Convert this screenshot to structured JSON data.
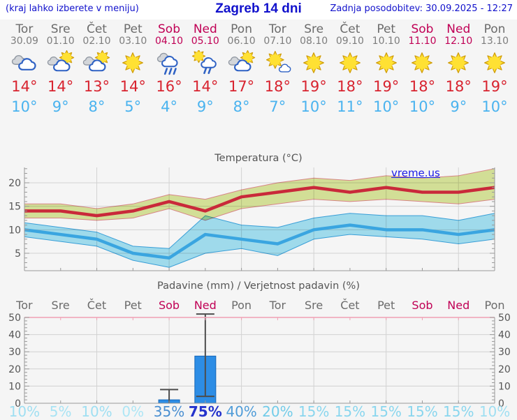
{
  "header": {
    "location_hint": "(kraj lahko izberete v meniju)",
    "title": "Zagreb 14 dni",
    "updated": "Zadnja posodobitev: 30.09.2025 - 12:27"
  },
  "colors": {
    "header_text": "#1111cc",
    "weekday": "#6b6b6b",
    "weekend": "#c00055",
    "date": "#7d7d7d",
    "temp_max": "#d8232f",
    "temp_min": "#4ab3ef",
    "axis": "#999999",
    "grid": "#d2d2d2",
    "tick_label": "#555555",
    "band_max_fill": "#dbe79c",
    "band_max_edge": "#e08a8a",
    "band_min_fill": "#a6e3f5",
    "band_min_edge": "#3aa5e0",
    "line_max": "#c9293a",
    "line_min": "#3aa5e0",
    "bar_fill": "#2d8de5",
    "bar_edge": "#1767b8",
    "whisker": "#4d4d4d",
    "precip_top_border": "#f0a0b4",
    "watermark": "#1a1ae6"
  },
  "forecast": {
    "days": [
      {
        "name": "Tor",
        "date": "30.09",
        "weekend": false,
        "icon": "cloudy",
        "temp_max": "14°",
        "temp_min": "10°"
      },
      {
        "name": "Sre",
        "date": "01.10",
        "weekend": false,
        "icon": "partly-cloudy",
        "temp_max": "14°",
        "temp_min": "9°"
      },
      {
        "name": "Čet",
        "date": "02.10",
        "weekend": false,
        "icon": "partly-cloudy",
        "temp_max": "13°",
        "temp_min": "8°"
      },
      {
        "name": "Pet",
        "date": "03.10",
        "weekend": false,
        "icon": "sunny",
        "temp_max": "14°",
        "temp_min": "5°"
      },
      {
        "name": "Sob",
        "date": "04.10",
        "weekend": true,
        "icon": "rain",
        "temp_max": "16°",
        "temp_min": "4°"
      },
      {
        "name": "Ned",
        "date": "05.10",
        "weekend": true,
        "icon": "sun-rain",
        "temp_max": "14°",
        "temp_min": "9°"
      },
      {
        "name": "Pon",
        "date": "06.10",
        "weekend": false,
        "icon": "partly-cloudy",
        "temp_max": "17°",
        "temp_min": "8°"
      },
      {
        "name": "Tor",
        "date": "07.10",
        "weekend": false,
        "icon": "mostly-sunny",
        "temp_max": "18°",
        "temp_min": "7°"
      },
      {
        "name": "Sre",
        "date": "08.10",
        "weekend": false,
        "icon": "sunny",
        "temp_max": "19°",
        "temp_min": "10°"
      },
      {
        "name": "Čet",
        "date": "09.10",
        "weekend": false,
        "icon": "sunny",
        "temp_max": "18°",
        "temp_min": "11°"
      },
      {
        "name": "Pet",
        "date": "10.10",
        "weekend": false,
        "icon": "sunny",
        "temp_max": "19°",
        "temp_min": "10°"
      },
      {
        "name": "Sob",
        "date": "11.10",
        "weekend": true,
        "icon": "sunny",
        "temp_max": "18°",
        "temp_min": "10°"
      },
      {
        "name": "Ned",
        "date": "12.10",
        "weekend": true,
        "icon": "sunny",
        "temp_max": "18°",
        "temp_min": "9°"
      },
      {
        "name": "Pon",
        "date": "13.10",
        "weekend": false,
        "icon": "sunny",
        "temp_max": "19°",
        "temp_min": "10°"
      }
    ]
  },
  "chart_data": [
    {
      "type": "line",
      "title": "Temperatura (°C)",
      "categories": [
        "30.09",
        "01.10",
        "02.10",
        "03.10",
        "04.10",
        "05.10",
        "06.10",
        "07.10",
        "08.10",
        "09.10",
        "10.10",
        "11.10",
        "12.10",
        "13.10"
      ],
      "ylim": [
        1.3,
        23.3
      ],
      "yticks": [
        5,
        10,
        15,
        20
      ],
      "grid": "on",
      "watermark": "vreme.us",
      "series": [
        {
          "name": "temp-max",
          "values": [
            14,
            14,
            13,
            14,
            16,
            14,
            17,
            18,
            19,
            18,
            19,
            18,
            18,
            19
          ]
        },
        {
          "name": "temp-max-upper",
          "values": [
            15.5,
            15.5,
            14.5,
            15.5,
            17.5,
            16.5,
            18.5,
            20,
            21,
            20.5,
            21.5,
            21,
            21.5,
            23
          ]
        },
        {
          "name": "temp-max-lower",
          "values": [
            12.5,
            12.5,
            12,
            12.5,
            14.5,
            12,
            14.5,
            15.5,
            16.5,
            16,
            16.5,
            16,
            15.5,
            16.5
          ]
        },
        {
          "name": "temp-min",
          "values": [
            10,
            9,
            8,
            5,
            4,
            9,
            8,
            7,
            10,
            11,
            10,
            10,
            9,
            10
          ]
        },
        {
          "name": "temp-min-upper",
          "values": [
            11.5,
            10.5,
            9.5,
            6.5,
            6,
            13,
            11,
            10.5,
            12.5,
            13.5,
            13,
            13,
            12,
            13.5
          ]
        },
        {
          "name": "temp-min-lower",
          "values": [
            8.5,
            7.5,
            6.5,
            3.5,
            2,
            5,
            6,
            4.5,
            8,
            9,
            8.5,
            8,
            7,
            8
          ]
        }
      ]
    },
    {
      "type": "bar",
      "title": "Padavine (mm) / Verjetnost padavin (%)",
      "categories": [
        "Tor",
        "Sre",
        "Čet",
        "Pet",
        "Sob",
        "Ned",
        "Pon",
        "Tor",
        "Sre",
        "Čet",
        "Pet",
        "Sob",
        "Ned",
        "Pon"
      ],
      "values": [
        0,
        0,
        0,
        0,
        2,
        27.5,
        0,
        0,
        0,
        0,
        0,
        0,
        0,
        0
      ],
      "range_low": [
        null,
        null,
        null,
        null,
        0,
        4,
        null,
        null,
        null,
        null,
        null,
        null,
        null,
        null
      ],
      "range_high": [
        null,
        null,
        null,
        null,
        8,
        52,
        null,
        null,
        null,
        null,
        null,
        null,
        null,
        null
      ],
      "ylim": [
        0,
        52
      ],
      "yticks": [
        0,
        10,
        20,
        30,
        40,
        50
      ],
      "probabilities": [
        {
          "value": "10%",
          "color": "#9fdff2"
        },
        {
          "value": "5%",
          "color": "#a8e3f4"
        },
        {
          "value": "10%",
          "color": "#9fdff2"
        },
        {
          "value": "0%",
          "color": "#aee6f5"
        },
        {
          "value": "35%",
          "color": "#4a8fd1"
        },
        {
          "value": "75%",
          "color": "#2433cc"
        },
        {
          "value": "40%",
          "color": "#4f9cd8"
        },
        {
          "value": "20%",
          "color": "#72cce9"
        },
        {
          "value": "15%",
          "color": "#89d6ee"
        },
        {
          "value": "15%",
          "color": "#89d6ee"
        },
        {
          "value": "15%",
          "color": "#89d6ee"
        },
        {
          "value": "15%",
          "color": "#89d6ee"
        },
        {
          "value": "15%",
          "color": "#89d6ee"
        },
        {
          "value": "10%",
          "color": "#9fdff2"
        }
      ]
    }
  ]
}
